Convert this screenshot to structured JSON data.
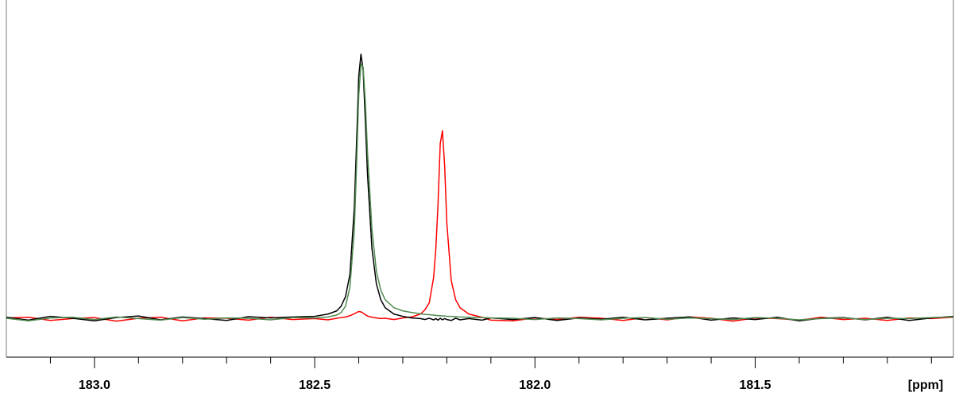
{
  "chart_data": {
    "type": "line",
    "x_label": "[ppm]",
    "xlim": [
      183.2,
      181.05
    ],
    "ylim": [
      -12,
      100
    ],
    "xticks": [
      {
        "value": 183.0,
        "label": "183.0"
      },
      {
        "value": 182.5,
        "label": "182.5"
      },
      {
        "value": 182.0,
        "label": "182.0"
      },
      {
        "value": 181.5,
        "label": "181.5"
      }
    ],
    "minor_xticks": [
      183.1,
      182.9,
      182.8,
      182.7,
      182.6,
      182.4,
      182.3,
      182.2,
      182.1,
      181.9,
      181.8,
      181.7,
      181.6,
      181.4,
      181.3,
      181.2,
      181.1
    ],
    "x": [
      183.2,
      183.15,
      183.1,
      183.05,
      183.0,
      182.95,
      182.9,
      182.85,
      182.8,
      182.75,
      182.7,
      182.65,
      182.6,
      182.55,
      182.5,
      182.47,
      182.45,
      182.44,
      182.43,
      182.42,
      182.41,
      182.405,
      182.4,
      182.395,
      182.39,
      182.385,
      182.38,
      182.37,
      182.36,
      182.35,
      182.34,
      182.32,
      182.3,
      182.28,
      182.26,
      182.25,
      182.24,
      182.23,
      182.225,
      182.22,
      182.215,
      182.21,
      182.205,
      182.2,
      182.19,
      182.18,
      182.17,
      182.15,
      182.12,
      182.1,
      182.05,
      182.0,
      181.95,
      181.9,
      181.85,
      181.8,
      181.75,
      181.7,
      181.65,
      181.6,
      181.55,
      181.5,
      181.45,
      181.4,
      181.35,
      181.3,
      181.25,
      181.2,
      181.15,
      181.1,
      181.05
    ],
    "series": [
      {
        "color": "#ff0000",
        "values": [
          0.3,
          0.5,
          -0.5,
          0.1,
          0.4,
          -0.7,
          0.2,
          0.5,
          -0.6,
          0.3,
          0.2,
          -0.4,
          0.5,
          -0.2,
          0.1,
          -0.3,
          0.2,
          0.4,
          0.6,
          1.0,
          1.6,
          2.0,
          2.3,
          2.2,
          1.8,
          1.3,
          0.9,
          0.5,
          0.3,
          0.1,
          0.2,
          -0.2,
          0.3,
          0.6,
          1.5,
          2.8,
          5,
          13,
          22,
          36,
          55,
          59,
          48,
          30,
          12,
          6,
          3.5,
          1.5,
          0.5,
          -0.4,
          -0.6,
          0.3,
          -0.2,
          0.5,
          0.2,
          -0.5,
          0.4,
          -0.3,
          0.6,
          0.2,
          -0.7,
          0.3,
          0.1,
          -0.4,
          0.5,
          -0.2,
          0.2,
          -0.5,
          0.3,
          0.1,
          0.5
        ]
      },
      {
        "color": "#000000",
        "values": [
          0.5,
          -0.4,
          0.8,
          0.2,
          -0.6,
          0.4,
          0.9,
          -0.3,
          0.6,
          0.1,
          -0.5,
          0.7,
          0.3,
          0.6,
          0.8,
          1.5,
          2.5,
          4,
          7,
          14,
          35,
          55,
          76,
          83,
          78,
          62,
          45,
          22,
          11,
          6,
          3.5,
          1.5,
          0.8,
          0.3,
          0.1,
          -0.2,
          0.2,
          -0.3,
          0.1,
          -0.4,
          0.2,
          -0.3,
          0.1,
          -0.2,
          -0.5,
          0.2,
          -0.3,
          0.1,
          -0.4,
          0.3,
          -0.2,
          0.4,
          -0.5,
          0.3,
          -0.1,
          0.5,
          -0.3,
          0.2,
          0.6,
          -0.4,
          0.3,
          -0.2,
          0.5,
          -0.6,
          0.2,
          0.4,
          -0.3,
          0.5,
          -0.5,
          0.3,
          0.8
        ]
      },
      {
        "color": "#4f8a4f",
        "values": [
          0.2,
          -0.6,
          0.3,
          0.5,
          -0.2,
          0.6,
          0.1,
          -0.4,
          0.4,
          -0.1,
          0.3,
          0.2,
          -0.3,
          0.4,
          0.3,
          0.6,
          1.2,
          2,
          4,
          10,
          28,
          48,
          70,
          80,
          79,
          68,
          52,
          28,
          15,
          9,
          6,
          3.5,
          2.5,
          2,
          1.6,
          1.4,
          1.3,
          1.2,
          1.1,
          1.0,
          1.0,
          0.9,
          0.9,
          0.8,
          0.8,
          0.7,
          0.6,
          0.5,
          0.4,
          0.3,
          0.2,
          -0.2,
          0.3,
          0.1,
          -0.3,
          0.2,
          0.4,
          -0.1,
          0.3,
          0.1,
          -0.2,
          0.4,
          0.2,
          -0.3,
          0.1,
          0.3,
          -0.2,
          0.2,
          0.1,
          0.4,
          0.6
        ]
      }
    ]
  }
}
